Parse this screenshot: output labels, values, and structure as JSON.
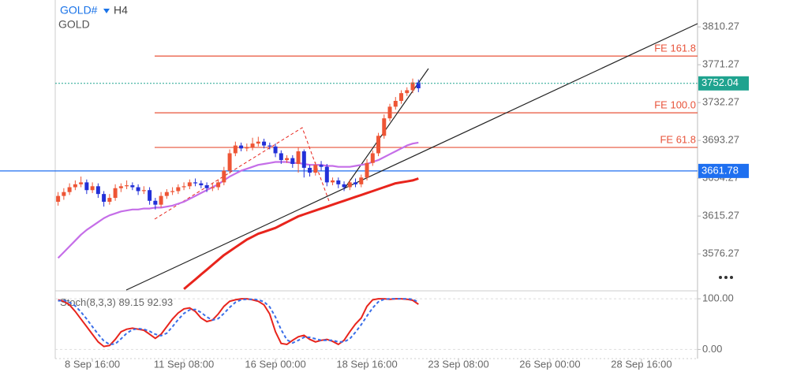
{
  "chart_data": [
    {
      "type": "candlestick",
      "title": "GOLD#",
      "timeframe": "H4",
      "subtitle": "GOLD",
      "x": [
        0,
        1,
        2,
        3,
        4,
        5,
        6,
        7,
        8,
        9,
        10,
        11,
        12,
        13,
        14,
        15,
        16,
        17,
        18,
        19,
        20,
        21,
        22,
        23,
        24,
        25,
        26,
        27,
        28,
        29,
        30,
        31,
        32,
        33,
        34,
        35,
        36,
        37,
        38,
        39,
        40,
        41,
        42,
        43,
        44,
        45,
        46,
        47,
        48,
        49,
        50,
        51,
        52,
        53,
        54,
        55,
        56,
        57,
        58,
        59,
        60,
        61,
        62,
        63
      ],
      "open": [
        3630,
        3636,
        3640,
        3645,
        3648,
        3650,
        3642,
        3646,
        3638,
        3630,
        3634,
        3644,
        3646,
        3647,
        3645,
        3641,
        3642,
        3631,
        3627,
        3636,
        3640,
        3641,
        3645,
        3646,
        3650,
        3649,
        3647,
        3644,
        3645,
        3650,
        3662,
        3680,
        3688,
        3685,
        3686,
        3690,
        3692,
        3688,
        3687,
        3680,
        3673,
        3675,
        3669,
        3682,
        3665,
        3660,
        3668,
        3666,
        3650,
        3652,
        3648,
        3645,
        3650,
        3648,
        3655,
        3670,
        3680,
        3698,
        3716,
        3728,
        3734,
        3742,
        3745,
        3753
      ],
      "high": [
        3640,
        3644,
        3649,
        3652,
        3656,
        3653,
        3650,
        3649,
        3641,
        3638,
        3648,
        3649,
        3652,
        3650,
        3648,
        3646,
        3645,
        3634,
        3640,
        3643,
        3645,
        3648,
        3650,
        3653,
        3654,
        3652,
        3650,
        3649,
        3653,
        3666,
        3684,
        3692,
        3691,
        3690,
        3696,
        3697,
        3695,
        3691,
        3690,
        3683,
        3678,
        3678,
        3686,
        3684,
        3668,
        3671,
        3672,
        3669,
        3655,
        3655,
        3651,
        3653,
        3654,
        3658,
        3674,
        3683,
        3701,
        3720,
        3731,
        3738,
        3745,
        3748,
        3757,
        3756
      ],
      "low": [
        3626,
        3632,
        3637,
        3642,
        3645,
        3638,
        3639,
        3634,
        3625,
        3627,
        3631,
        3640,
        3643,
        3642,
        3637,
        3638,
        3627,
        3622,
        3624,
        3633,
        3637,
        3638,
        3642,
        3643,
        3646,
        3644,
        3640,
        3641,
        3642,
        3647,
        3659,
        3677,
        3682,
        3682,
        3683,
        3687,
        3685,
        3684,
        3676,
        3669,
        3670,
        3665,
        3660,
        3655,
        3656,
        3657,
        3662,
        3646,
        3647,
        3644,
        3641,
        3642,
        3645,
        3645,
        3652,
        3667,
        3677,
        3695,
        3713,
        3725,
        3731,
        3739,
        3742,
        3743
      ],
      "close": [
        3636,
        3640,
        3645,
        3648,
        3650,
        3642,
        3646,
        3638,
        3630,
        3634,
        3644,
        3646,
        3647,
        3645,
        3641,
        3642,
        3631,
        3627,
        3636,
        3640,
        3641,
        3645,
        3646,
        3650,
        3649,
        3647,
        3644,
        3645,
        3650,
        3662,
        3680,
        3688,
        3685,
        3686,
        3690,
        3692,
        3688,
        3687,
        3680,
        3673,
        3675,
        3669,
        3682,
        3665,
        3660,
        3668,
        3666,
        3650,
        3652,
        3648,
        3645,
        3650,
        3648,
        3655,
        3670,
        3680,
        3698,
        3716,
        3728,
        3734,
        3742,
        3745,
        3753,
        3747
      ],
      "up_color": "#ee5535",
      "down_color": "#2230d8",
      "series": [
        {
          "color": "#c56ee8",
          "values": [
            3572,
            3578,
            3584,
            3590,
            3596,
            3601,
            3605,
            3609,
            3613,
            3616,
            3618,
            3620,
            3621,
            3622,
            3622,
            3623,
            3623,
            3624,
            3624,
            3625,
            3626,
            3628,
            3630,
            3633,
            3636,
            3639,
            3642,
            3645,
            3648,
            3652,
            3656,
            3659,
            3662,
            3664,
            3666,
            3668,
            3669,
            3670,
            3671,
            3671,
            3671,
            3670,
            3670,
            3669,
            3668,
            3668,
            3668,
            3667,
            3667,
            3666,
            3666,
            3666,
            3667,
            3668,
            3669,
            3671,
            3673,
            3676,
            3679,
            3682,
            3685,
            3688,
            3690,
            3691
          ]
        },
        {
          "color": "#e8241c",
          "values": [
            null,
            null,
            null,
            null,
            null,
            null,
            null,
            null,
            null,
            null,
            null,
            null,
            null,
            null,
            null,
            null,
            null,
            null,
            null,
            null,
            null,
            null,
            3540,
            3545,
            3550,
            3555,
            3560,
            3565,
            3570,
            3575,
            3579,
            3583,
            3587,
            3591,
            3594,
            3597,
            3599,
            3601,
            3603,
            3606,
            3609,
            3612,
            3615,
            3617,
            3619,
            3621,
            3623,
            3625,
            3627,
            3629,
            3631,
            3633,
            3635,
            3637,
            3639,
            3641,
            3643,
            3645,
            3647,
            3649,
            3650,
            3651,
            3652,
            3654
          ]
        }
      ],
      "levels": [
        {
          "label": "FE 161.8",
          "value": 3780.2
        },
        {
          "label": "FE 100.0",
          "value": 3721.7
        },
        {
          "label": "FE 61.8",
          "value": 3686
        }
      ],
      "level_color": "#e8533a",
      "current_price": 3752.04,
      "current_color": "#1fa38f",
      "line_price": 3661.78,
      "line_color": "#1e6ff0",
      "xlim": [
        -0.5,
        111.8
      ],
      "ylim": [
        3539,
        3838
      ],
      "xticks": [
        {
          "value": 6,
          "label": "8 Sep 16:00"
        },
        {
          "value": 22,
          "label": "11 Sep 08:00"
        },
        {
          "value": 38,
          "label": "16 Sep 00:00"
        },
        {
          "value": 54,
          "label": "18 Sep 16:00"
        },
        {
          "value": 70,
          "label": "23 Sep 08:00"
        },
        {
          "value": 86,
          "label": "26 Sep 00:00"
        },
        {
          "value": 102,
          "label": "28 Sep 16:00"
        }
      ],
      "yticks": [
        3810.27,
        3771.27,
        3732.27,
        3693.27,
        3654.27,
        3615.27,
        3576.27
      ]
    },
    {
      "type": "line",
      "name": "Stoch(8,3,3)",
      "series": [
        {
          "color": "#e8241c",
          "dashed": false,
          "values": [
            98,
            95,
            88,
            75,
            60,
            45,
            30,
            15,
            6,
            8,
            20,
            35,
            40,
            42,
            40,
            38,
            30,
            22,
            30,
            45,
            60,
            72,
            80,
            82,
            75,
            62,
            55,
            58,
            70,
            85,
            95,
            98,
            100,
            100,
            98,
            95,
            88,
            70,
            35,
            12,
            10,
            18,
            25,
            28,
            20,
            15,
            18,
            20,
            16,
            10,
            18,
            35,
            50,
            62,
            85,
            98,
            100,
            100,
            99,
            100,
            100,
            99,
            97,
            89.15
          ]
        },
        {
          "color": "#3a6ee8",
          "dashed": true,
          "values": [
            96,
            97,
            93,
            86,
            74,
            60,
            45,
            30,
            17,
            10,
            11,
            21,
            32,
            39,
            41,
            40,
            36,
            30,
            27,
            32,
            45,
            59,
            71,
            78,
            79,
            73,
            64,
            58,
            61,
            71,
            83,
            93,
            98,
            99,
            99,
            98,
            94,
            84,
            64,
            39,
            19,
            13,
            18,
            24,
            24,
            21,
            18,
            18,
            18,
            15,
            15,
            21,
            34,
            49,
            66,
            82,
            94,
            99,
            100,
            100,
            100,
            100,
            99,
            92.93
          ]
        }
      ],
      "ylim": [
        -18,
        111
      ],
      "yticks": [
        {
          "value": 100,
          "label": "100.00"
        },
        {
          "value": 0,
          "label": "0.00"
        }
      ]
    }
  ]
}
